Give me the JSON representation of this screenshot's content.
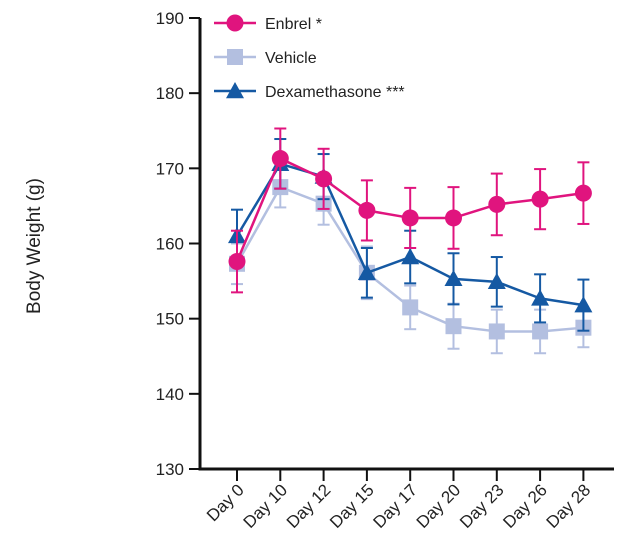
{
  "chart_data": {
    "type": "line",
    "title": "",
    "xlabel": "",
    "ylabel": "Body Weight (g)",
    "ylim": [
      130,
      190
    ],
    "yticks": [
      130,
      140,
      150,
      160,
      170,
      180,
      190
    ],
    "categories": [
      "Day 0",
      "Day 10",
      "Day 12",
      "Day 15",
      "Day 17",
      "Day 20",
      "Day 23",
      "Day 26",
      "Day 28"
    ],
    "grid": false,
    "legend_position": "top-left",
    "series": [
      {
        "name": "Vehicle",
        "significance": "",
        "color": "#b3bfe0",
        "marker": "square",
        "values": [
          157.3,
          167.5,
          165.3,
          156.1,
          151.5,
          149.0,
          148.3,
          148.3,
          148.8
        ],
        "errors": [
          2.7,
          2.7,
          2.8,
          3.5,
          2.9,
          3.0,
          2.9,
          2.9,
          2.6
        ]
      },
      {
        "name": "Dexamethasone",
        "significance": "***",
        "color": "#1559a3",
        "marker": "triangle",
        "values": [
          161.0,
          170.6,
          168.9,
          156.1,
          158.2,
          155.3,
          154.9,
          152.7,
          151.8
        ],
        "errors": [
          3.5,
          3.3,
          3.0,
          3.3,
          3.5,
          3.4,
          3.3,
          3.2,
          3.4
        ]
      },
      {
        "name": "Enbrel",
        "significance": "*",
        "color": "#e0147e",
        "marker": "circle",
        "values": [
          157.6,
          171.3,
          168.6,
          164.4,
          163.4,
          163.4,
          165.2,
          165.9,
          166.7
        ],
        "errors": [
          4.1,
          4.0,
          4.0,
          4.0,
          4.0,
          4.1,
          4.1,
          4.0,
          4.1
        ]
      }
    ],
    "legend_order": [
      "Enbrel",
      "Vehicle",
      "Dexamethasone"
    ]
  }
}
